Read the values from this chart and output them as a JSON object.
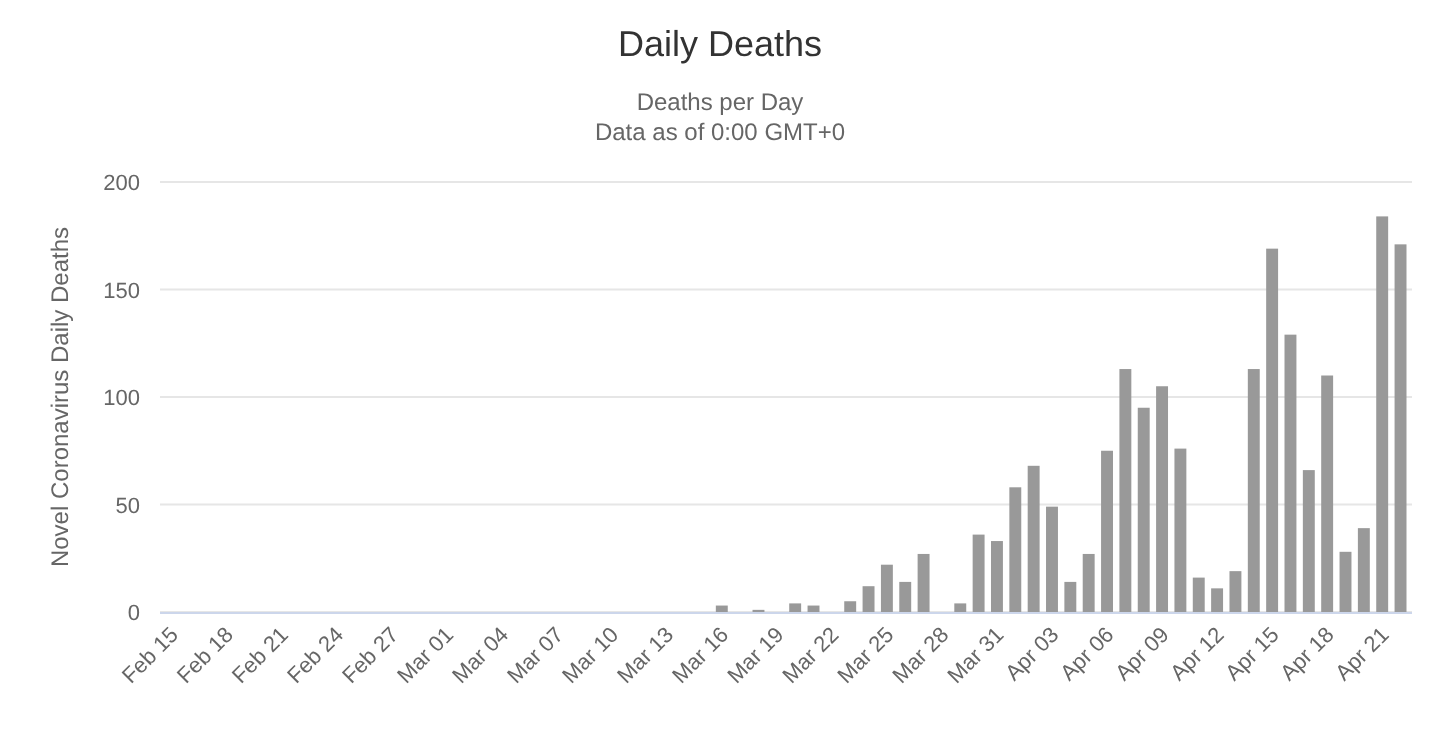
{
  "chart_data": {
    "type": "bar",
    "title": "Daily Deaths",
    "subtitle": "Deaths per Day\nData as of 0:00 GMT+0",
    "ylabel": "Novel Coronavirus Daily Deaths",
    "categories": [
      "Feb 15",
      null,
      null,
      "Feb 18",
      null,
      null,
      "Feb 21",
      null,
      null,
      "Feb 24",
      null,
      null,
      "Feb 27",
      null,
      null,
      "Mar 01",
      null,
      null,
      "Mar 04",
      null,
      null,
      "Mar 07",
      null,
      null,
      "Mar 10",
      null,
      null,
      "Mar 13",
      null,
      null,
      "Mar 16",
      null,
      null,
      "Mar 19",
      null,
      null,
      "Mar 22",
      null,
      null,
      "Mar 25",
      null,
      null,
      "Mar 28",
      null,
      null,
      "Mar 31",
      null,
      null,
      "Apr 03",
      null,
      null,
      "Apr 06",
      null,
      null,
      "Apr 09",
      null,
      null,
      "Apr 12",
      null,
      null,
      "Apr 15",
      null,
      null,
      "Apr 18",
      null,
      null,
      "Apr 21",
      null
    ],
    "values": [
      0,
      0,
      0,
      0,
      0,
      0,
      0,
      0,
      0,
      0,
      0,
      0,
      0,
      0,
      0,
      0,
      0,
      0,
      0,
      0,
      0,
      0,
      0,
      0,
      0,
      0,
      0,
      0,
      0,
      0,
      3,
      0,
      1,
      0,
      4,
      3,
      0,
      5,
      12,
      22,
      14,
      27,
      0,
      4,
      36,
      33,
      58,
      68,
      49,
      14,
      27,
      75,
      113,
      95,
      105,
      76,
      16,
      11,
      19,
      113,
      169,
      129,
      66,
      110,
      28,
      39,
      184,
      171
    ],
    "color": "#999999",
    "ylim": [
      0,
      200
    ],
    "yticks": [
      0,
      50,
      100,
      150,
      200
    ],
    "grid": "y"
  }
}
